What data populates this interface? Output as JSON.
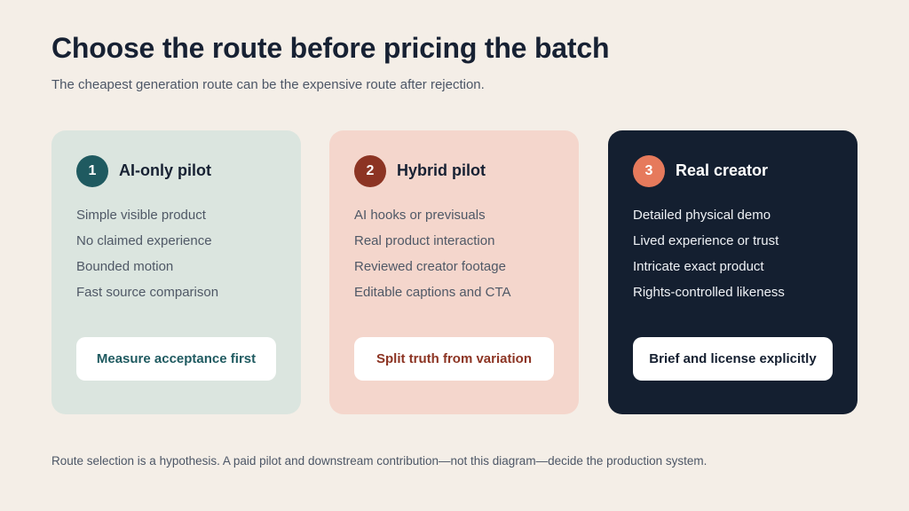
{
  "title": "Choose the route before pricing the batch",
  "subtitle": "The cheapest generation route can be the expensive route after rejection.",
  "cards": [
    {
      "number": "1",
      "title": "AI-only pilot",
      "items": [
        "Simple visible product",
        "No claimed experience",
        "Bounded motion",
        "Fast source comparison"
      ],
      "action": "Measure acceptance first",
      "accent_color": "#1f5a60",
      "background_color": "#dbe5df"
    },
    {
      "number": "2",
      "title": "Hybrid pilot",
      "items": [
        "AI hooks or previsuals",
        "Real product interaction",
        "Reviewed creator footage",
        "Editable captions and CTA"
      ],
      "action": "Split truth from variation",
      "accent_color": "#8c3423",
      "background_color": "#f4d6cc"
    },
    {
      "number": "3",
      "title": "Real creator",
      "items": [
        "Detailed physical demo",
        "Lived experience or trust",
        "Intricate exact product",
        "Rights-controlled likeness"
      ],
      "action": "Brief and license explicitly",
      "accent_color": "#e67a5c",
      "background_color": "#141f30"
    }
  ],
  "footer": "Route selection is a hypothesis. A paid pilot and downstream contribution—not this diagram—decide the production system."
}
